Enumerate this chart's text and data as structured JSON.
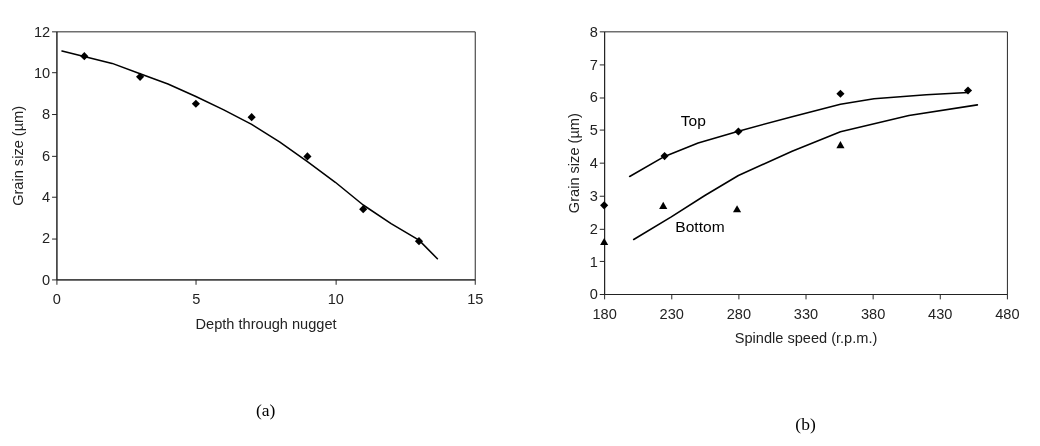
{
  "chart_data": [
    {
      "type": "scatter",
      "xlabel": "Depth through nugget",
      "ylabel": "Grain size (µm)",
      "xlim": [
        0,
        15
      ],
      "xticks": [
        0,
        5,
        10,
        15
      ],
      "ylim": [
        0,
        12
      ],
      "yticks": [
        0,
        2,
        4,
        6,
        8,
        10,
        12
      ],
      "grid": false,
      "series": [
        {
          "marker": "diamond",
          "color": "#000000",
          "x": [
            1,
            3,
            5,
            7,
            9,
            11,
            13
          ],
          "values": [
            10.8,
            9.8,
            8.5,
            7.85,
            5.95,
            3.4,
            1.85
          ]
        },
        {
          "type": "line",
          "marker": "none",
          "line_style": "solid",
          "color": "#000000",
          "x": [
            0.2,
            2,
            3,
            4,
            5,
            6,
            7,
            8,
            9,
            10,
            11,
            12,
            13,
            13.66
          ],
          "values": [
            11.05,
            10.45,
            9.95,
            9.45,
            8.85,
            8.2,
            7.5,
            6.65,
            5.7,
            4.7,
            3.6,
            2.7,
            1.9,
            1.0
          ]
        }
      ],
      "annotations": [
        "(a)"
      ]
    },
    {
      "type": "scatter",
      "xlabel": "Spindle speed (r.p.m.)",
      "ylabel": "Grain size (µm)",
      "xlim": [
        180,
        480
      ],
      "xticks": [
        180,
        230,
        280,
        330,
        380,
        430,
        480
      ],
      "ylim": [
        0,
        8
      ],
      "yticks": [
        0,
        1,
        2,
        3,
        4,
        5,
        6,
        7,
        8
      ],
      "grid": false,
      "series": [
        {
          "marker": "diamond",
          "color": "#000000",
          "x": [
            180,
            225,
            280,
            356,
            451
          ],
          "values": [
            2.7,
            4.2,
            4.95,
            6.1,
            6.2
          ]
        },
        {
          "marker": "triangle",
          "color": "#000000",
          "x": [
            180,
            224,
            279,
            356
          ],
          "values": [
            1.6,
            2.7,
            2.6,
            4.55
          ]
        },
        {
          "type": "line",
          "name": "Top",
          "marker": "none",
          "line_style": "solid",
          "color": "#000000",
          "x": [
            199,
            225,
            250,
            280,
            320,
            356,
            381,
            420,
            451
          ],
          "values": [
            3.58,
            4.19,
            4.6,
            4.96,
            5.4,
            5.78,
            5.95,
            6.07,
            6.14
          ]
        },
        {
          "type": "line",
          "name": "Bottom",
          "marker": "none",
          "line_style": "solid",
          "color": "#000000",
          "x": [
            202,
            230,
            255,
            280,
            320,
            356,
            407,
            458
          ],
          "values": [
            1.66,
            2.35,
            3.0,
            3.61,
            4.35,
            4.94,
            5.44,
            5.76
          ]
        }
      ],
      "annotations": [
        "(b)"
      ]
    }
  ]
}
